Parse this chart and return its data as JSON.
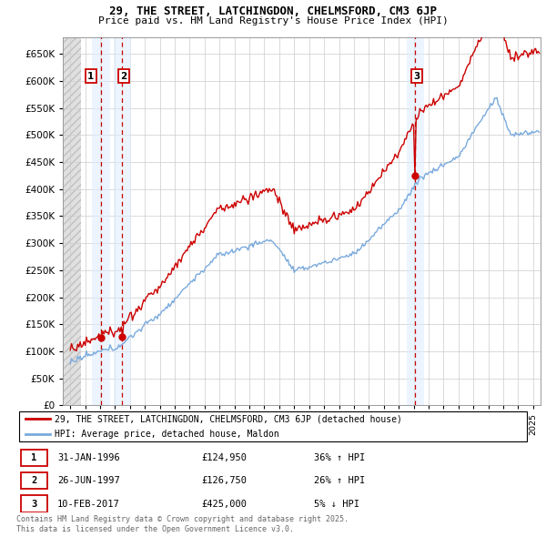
{
  "title1": "29, THE STREET, LATCHINGDON, CHELMSFORD, CM3 6JP",
  "title2": "Price paid vs. HM Land Registry's House Price Index (HPI)",
  "yticks": [
    0,
    50000,
    100000,
    150000,
    200000,
    250000,
    300000,
    350000,
    400000,
    450000,
    500000,
    550000,
    600000,
    650000
  ],
  "ytick_labels": [
    "£0",
    "£50K",
    "£100K",
    "£150K",
    "£200K",
    "£250K",
    "£300K",
    "£350K",
    "£400K",
    "£450K",
    "£500K",
    "£550K",
    "£600K",
    "£650K"
  ],
  "xmin": 1993.5,
  "xmax": 2025.5,
  "ymin": 0,
  "ymax": 680000,
  "sale_dates": [
    1996.08,
    1997.49,
    2017.11
  ],
  "sale_prices": [
    124950,
    126750,
    425000
  ],
  "sale_labels": [
    "1",
    "2",
    "3"
  ],
  "legend_line1": "29, THE STREET, LATCHINGDON, CHELMSFORD, CM3 6JP (detached house)",
  "legend_line2": "HPI: Average price, detached house, Maldon",
  "table_rows": [
    {
      "num": "1",
      "date": "31-JAN-1996",
      "price": "£124,950",
      "hpi": "36% ↑ HPI"
    },
    {
      "num": "2",
      "date": "26-JUN-1997",
      "price": "£126,750",
      "hpi": "26% ↑ HPI"
    },
    {
      "num": "3",
      "date": "10-FEB-2017",
      "price": "£425,000",
      "hpi": "5% ↓ HPI"
    }
  ],
  "footnote": "Contains HM Land Registry data © Crown copyright and database right 2025.\nThis data is licensed under the Open Government Licence v3.0.",
  "red_color": "#cc0000",
  "blue_color": "#7aaadd",
  "grid_color": "#cccccc",
  "highlight_bg": "#ddeeff",
  "hatch_color": "#dddddd"
}
